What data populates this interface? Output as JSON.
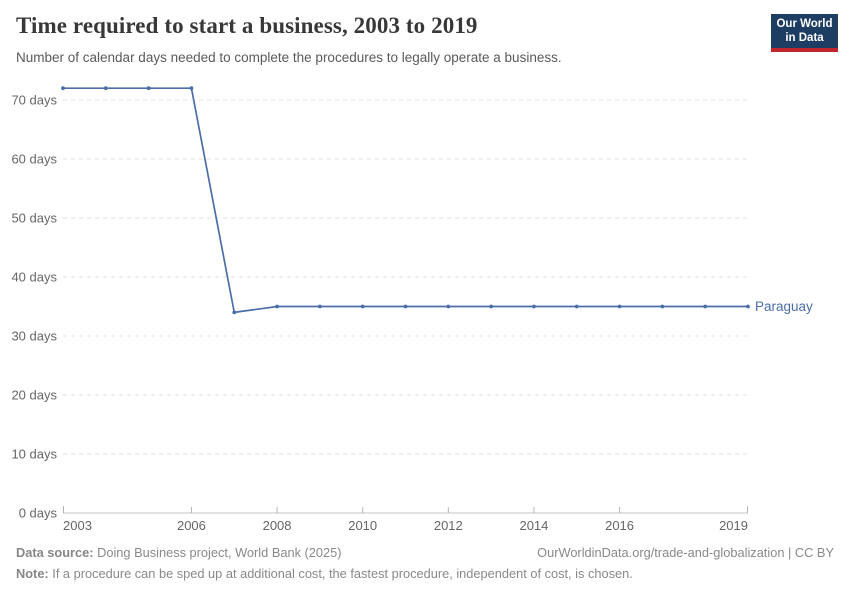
{
  "header": {
    "title": "Time required to start a business, 2003 to 2019",
    "subtitle": "Number of calendar days needed to complete the procedures to legally operate a business.",
    "logo": {
      "line1": "Our World",
      "line2": "in Data",
      "bg_color": "#1d3d63",
      "accent_color": "#c0262d"
    }
  },
  "chart_data": {
    "type": "line",
    "title": "Time required to start a business, 2003 to 2019",
    "ylabel": "",
    "xlabel": "",
    "xlim": [
      2003,
      2019
    ],
    "ylim": [
      0,
      70
    ],
    "grid": "horizontal-dashed",
    "legend": "end-of-line-label",
    "x": [
      2003,
      2004,
      2005,
      2006,
      2007,
      2008,
      2009,
      2010,
      2011,
      2012,
      2013,
      2014,
      2015,
      2016,
      2017,
      2018,
      2019
    ],
    "series": [
      {
        "name": "Paraguay",
        "color": "#4c6ea8",
        "values": [
          72,
          72,
          72,
          72,
          34,
          35,
          35,
          35,
          35,
          35,
          35,
          35,
          35,
          35,
          35,
          35,
          35
        ]
      }
    ],
    "x_ticks": [
      {
        "year": 2003,
        "label": "2003"
      },
      {
        "year": 2006,
        "label": "2006"
      },
      {
        "year": 2008,
        "label": "2008"
      },
      {
        "year": 2010,
        "label": "2010"
      },
      {
        "year": 2012,
        "label": "2012"
      },
      {
        "year": 2014,
        "label": "2014"
      },
      {
        "year": 2016,
        "label": "2016"
      },
      {
        "year": 2019,
        "label": "2019"
      }
    ],
    "y_ticks": [
      {
        "value": 0,
        "label": "0 days"
      },
      {
        "value": 10,
        "label": "10 days"
      },
      {
        "value": 20,
        "label": "20 days"
      },
      {
        "value": 30,
        "label": "30 days"
      },
      {
        "value": 40,
        "label": "40 days"
      },
      {
        "value": 50,
        "label": "50 days"
      },
      {
        "value": 60,
        "label": "60 days"
      },
      {
        "value": 70,
        "label": "70 days"
      }
    ],
    "colors": {
      "gridline": "#e0e0e0",
      "axis_line": "#c4c4c4",
      "tick_mark": "#b5b5b5",
      "tick_label": "#666666"
    }
  },
  "footer": {
    "source_label": "Data source:",
    "source_text": " Doing Business project, World Bank (2025)",
    "rights": "OurWorldinData.org/trade-and-globalization | CC BY",
    "note_label": "Note:",
    "note_text": " If a procedure can be sped up at additional cost, the fastest procedure, independent of cost, is chosen."
  }
}
